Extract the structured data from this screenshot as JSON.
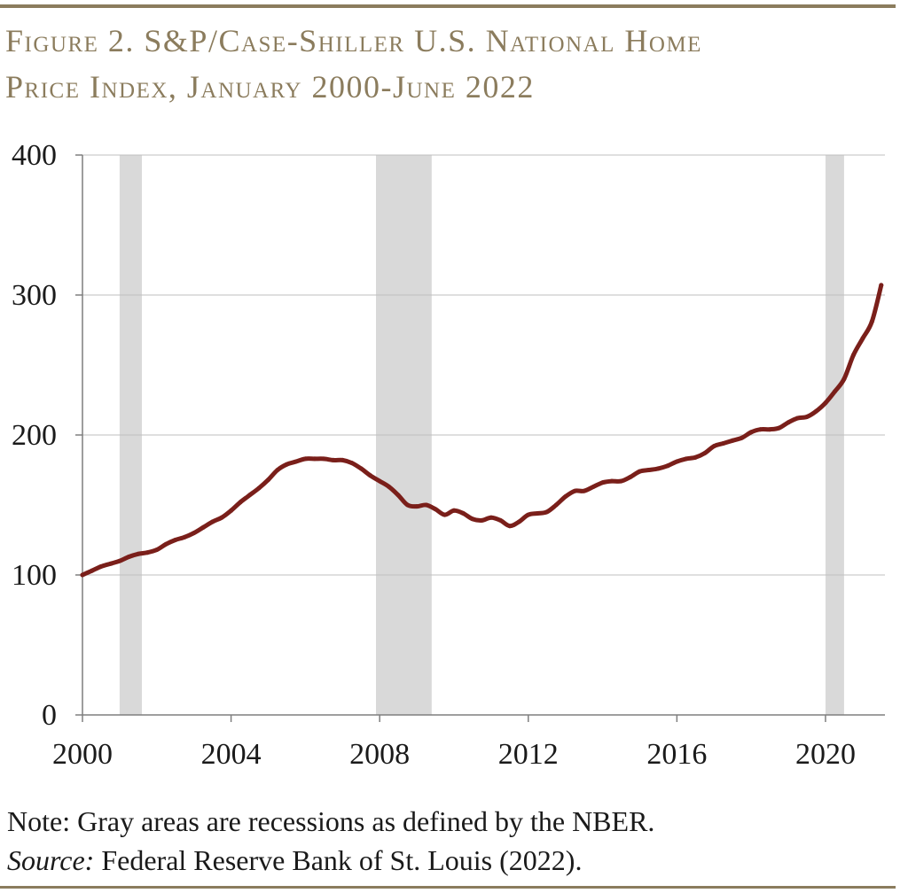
{
  "title": {
    "line1": "Figure 2. S&P/Case-Shiller U.S. National Home",
    "line2": "Price Index, January 2000-June 2022"
  },
  "note": {
    "text": "Note: Gray areas are recessions as defined by the NBER.",
    "source_label": "Source:",
    "source_text": " Federal Reserve Bank of St. Louis (2022)."
  },
  "colors": {
    "rule": "#8b7c5d",
    "title": "#8b7c5d",
    "line": "#7a1f1a",
    "recession": "#d9d9d9",
    "grid": "#bfbfbf",
    "axis": "#7f7f7f"
  },
  "chart_data": {
    "type": "line",
    "title": "",
    "xlabel": "",
    "ylabel": "",
    "xlim": [
      2000,
      2021.6
    ],
    "ylim": [
      0,
      400
    ],
    "x_ticks": [
      2000,
      2004,
      2008,
      2012,
      2016,
      2020
    ],
    "x_tick_labels": [
      "2000",
      "2004",
      "2008",
      "2012",
      "2016",
      "2020"
    ],
    "y_ticks": [
      0,
      100,
      200,
      300,
      400
    ],
    "y_tick_labels": [
      "0",
      "100",
      "200",
      "300",
      "400"
    ],
    "grid": "horizontal",
    "legend": "none",
    "recessions": [
      {
        "start": 2001.0,
        "end": 2001.6
      },
      {
        "start": 2007.9,
        "end": 2009.4
      },
      {
        "start": 2020.0,
        "end": 2020.5
      }
    ],
    "series": [
      {
        "x": [
          2000.0,
          2000.25,
          2000.5,
          2000.75,
          2001.0,
          2001.25,
          2001.5,
          2001.75,
          2002.0,
          2002.25,
          2002.5,
          2002.75,
          2003.0,
          2003.25,
          2003.5,
          2003.75,
          2004.0,
          2004.25,
          2004.5,
          2004.75,
          2005.0,
          2005.25,
          2005.5,
          2005.75,
          2006.0,
          2006.25,
          2006.5,
          2006.75,
          2007.0,
          2007.25,
          2007.5,
          2007.75,
          2008.0,
          2008.25,
          2008.5,
          2008.75,
          2009.0,
          2009.25,
          2009.5,
          2009.75,
          2010.0,
          2010.25,
          2010.5,
          2010.75,
          2011.0,
          2011.25,
          2011.5,
          2011.75,
          2012.0,
          2012.25,
          2012.5,
          2012.75,
          2013.0,
          2013.25,
          2013.5,
          2013.75,
          2014.0,
          2014.25,
          2014.5,
          2014.75,
          2015.0,
          2015.25,
          2015.5,
          2015.75,
          2016.0,
          2016.25,
          2016.5,
          2016.75,
          2017.0,
          2017.25,
          2017.5,
          2017.75,
          2018.0,
          2018.25,
          2018.5,
          2018.75,
          2019.0,
          2019.25,
          2019.5,
          2019.75,
          2020.0,
          2020.25,
          2020.5,
          2020.75,
          2021.0,
          2021.25,
          2021.5
        ],
        "values": [
          100,
          103,
          106,
          108,
          110,
          113,
          115,
          116,
          118,
          122,
          125,
          127,
          130,
          134,
          138,
          141,
          146,
          152,
          157,
          162,
          168,
          175,
          179,
          181,
          183,
          183,
          183,
          182,
          182,
          180,
          176,
          171,
          167,
          163,
          157,
          150,
          149,
          150,
          147,
          143,
          146,
          144,
          140,
          139,
          141,
          139,
          135,
          138,
          143,
          144,
          145,
          150,
          156,
          160,
          160,
          163,
          166,
          167,
          167,
          170,
          174,
          175,
          176,
          178,
          181,
          183,
          184,
          187,
          192,
          194,
          196,
          198,
          202,
          204,
          204,
          205,
          209,
          212,
          213,
          217,
          223,
          231,
          240,
          257,
          269,
          281,
          307
        ]
      }
    ]
  }
}
